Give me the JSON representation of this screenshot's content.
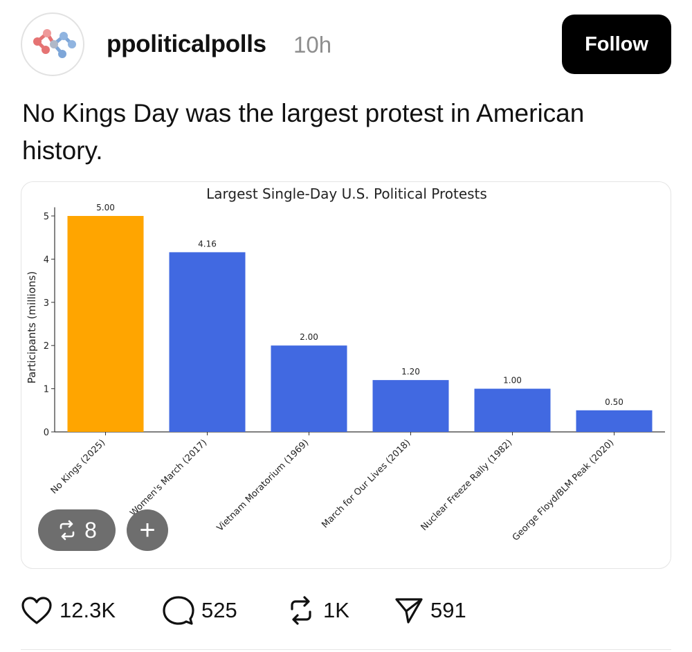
{
  "post": {
    "username": "ppoliticalpolls",
    "time": "10h",
    "follow_label": "Follow",
    "text": "No Kings Day was the largest protest in American history."
  },
  "media": {
    "repost_count": "8",
    "add_label": "+"
  },
  "actions": {
    "likes": "12.3K",
    "replies": "525",
    "reposts": "1K",
    "shares": "591"
  },
  "icons": {
    "avatar": "molecule-logo-icon",
    "like": "heart-icon",
    "reply": "speech-bubble-icon",
    "repost": "repost-arrows-icon",
    "share": "paper-plane-icon"
  },
  "colors": {
    "highlight_bar": "#ffa500",
    "bar": "#4169e1",
    "button": "#000000"
  },
  "chart_data": {
    "type": "bar",
    "title": "Largest Single-Day U.S. Political Protests",
    "xlabel": "",
    "ylabel": "Participants (millions)",
    "categories": [
      "No Kings (2025)",
      "Women's March (2017)",
      "Vietnam Moratorium (1969)",
      "March for Our Lives (2018)",
      "Nuclear Freeze Rally (1982)",
      "George Floyd/BLM Peak (2020)"
    ],
    "values": [
      5.0,
      4.16,
      2.0,
      1.2,
      1.0,
      0.5
    ],
    "data_labels": [
      "5.00",
      "4.16",
      "2.00",
      "1.20",
      "1.00",
      "0.50"
    ],
    "yticks": [
      0,
      1,
      2,
      3,
      4,
      5
    ],
    "ylim": [
      0,
      5.2
    ],
    "grid": false,
    "bar_colors": [
      "#ffa500",
      "#4169e1",
      "#4169e1",
      "#4169e1",
      "#4169e1",
      "#4169e1"
    ]
  }
}
